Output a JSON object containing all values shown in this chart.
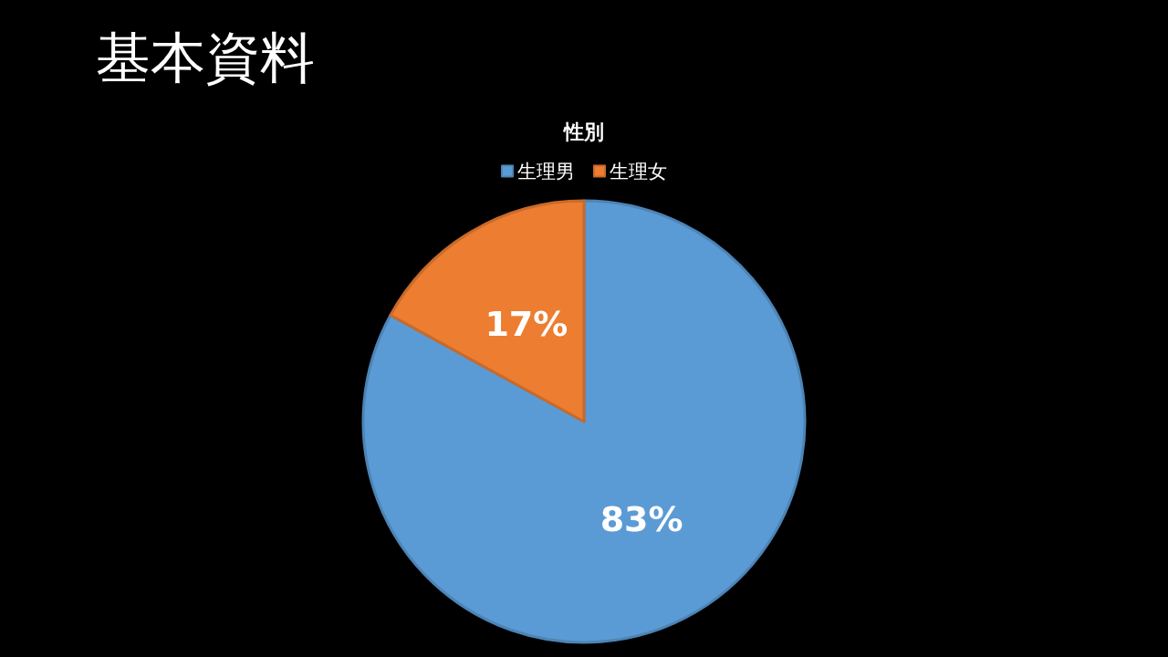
{
  "chart_data": {
    "type": "pie",
    "title": "基本資料",
    "subtitle": "性別",
    "categories": [
      "生理男",
      "生理女"
    ],
    "values": [
      83,
      17
    ],
    "colors": [
      "#5b9bd5",
      "#ed7d31"
    ],
    "value_labels": [
      "83%",
      "17%"
    ],
    "legend": "top"
  }
}
